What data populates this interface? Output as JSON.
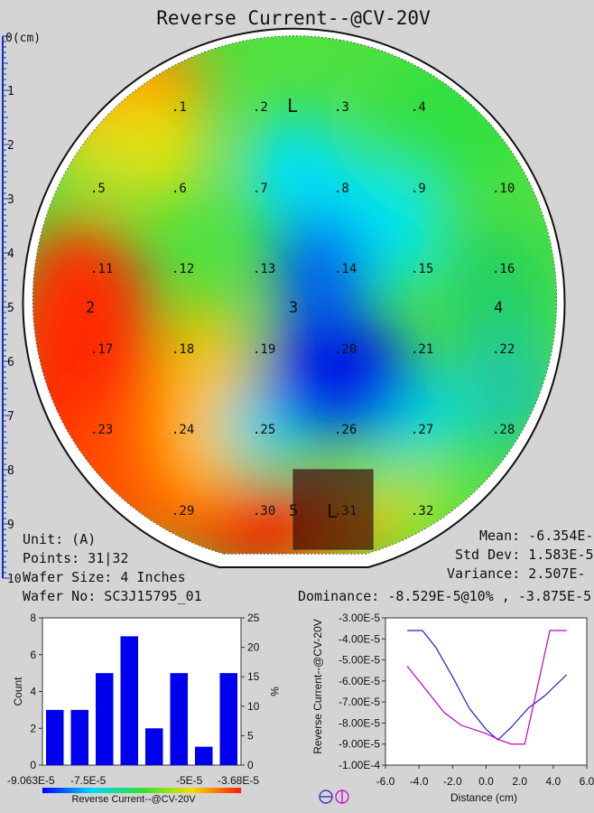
{
  "title": "Reverse Current--@CV-20V",
  "ruler": {
    "first_label": "0(cm)",
    "labels": [
      "1",
      "2",
      "3",
      "4",
      "5",
      "6",
      "7",
      "8",
      "9",
      "10"
    ]
  },
  "wafer": {
    "notch_label_top": "L",
    "notch_label_bottom": "L",
    "region_labels": [
      "2",
      "3",
      "4",
      "5"
    ],
    "site_labels": [
      ".1",
      ".2",
      ".3",
      ".4",
      ".5",
      ".6",
      ".7",
      ".8",
      ".9",
      ".10",
      ".11",
      ".12",
      ".13",
      ".14",
      ".15",
      ".16",
      ".17",
      ".18",
      ".19",
      ".20",
      ".21",
      ".22",
      ".23",
      ".24",
      ".25",
      ".26",
      ".27",
      ".28",
      ".29",
      ".30",
      ".31",
      ".32"
    ]
  },
  "info": {
    "unit": "Unit: (A)",
    "points": "Points: 31|32",
    "wafer_size": "Wafer Size: 4 Inches",
    "wafer_no": "Wafer No: SC3J15795_01"
  },
  "stats": {
    "mean": "Mean: -6.354E-",
    "std_dev": "Std Dev: 1.583E-5",
    "variance": "Variance: 2.507E-",
    "dominance": "Dominance: -8.529E-5@10% , -3.875E-5"
  },
  "colors": {
    "bar": "#0000ee",
    "line_blue": "#2020c0",
    "line_magenta": "#c000c0",
    "map_red": "#ff2a00",
    "map_blue": "#0018e6"
  },
  "chart_data": [
    {
      "type": "bar",
      "name": "histogram",
      "values": [
        3,
        3,
        5,
        7,
        2,
        5,
        1,
        5
      ],
      "ylabel": "Count",
      "ylim": [
        0,
        8
      ],
      "yticks": [
        "0",
        "2",
        "4",
        "6",
        "8"
      ],
      "y2label": "%",
      "y2lim": [
        0,
        25
      ],
      "y2ticks": [
        "0",
        "5",
        "10",
        "15",
        "20",
        "25"
      ],
      "xticks": [
        "-9.063E-5",
        "-7.5E-5",
        "-5E-5",
        "-3.68E-5"
      ],
      "colorbar_label": "Reverse Current--@CV-20V"
    },
    {
      "type": "line",
      "name": "profile",
      "xlabel": "Distance (cm)",
      "ylabel": "Reverse Current--@CV-20V",
      "xlim": [
        -6.0,
        6.0
      ],
      "ylim": [
        -0.0001,
        -3e-05
      ],
      "xticks": [
        "-6.0",
        "-4.0",
        "-2.0",
        "0.0",
        "2.0",
        "4.0",
        "6.0"
      ],
      "yticks": [
        "-3.00E-5",
        "-4.00E-5",
        "-5.00E-5",
        "-6.00E-5",
        "-7.00E-5",
        "-8.00E-5",
        "-9.00E-5",
        "-1.00E-4"
      ],
      "series": [
        {
          "x": [
            -4.7,
            -3.8,
            -3.0,
            -2.0,
            -1.0,
            0.0,
            0.7,
            1.5,
            2.5,
            3.5,
            4.8
          ],
          "values": [
            -3.6e-05,
            -3.6e-05,
            -4.4e-05,
            -5.8e-05,
            -7.3e-05,
            -8.3e-05,
            -8.8e-05,
            -8.2e-05,
            -7.3e-05,
            -6.7e-05,
            -5.7e-05
          ]
        },
        {
          "x": [
            -4.7,
            -3.5,
            -2.5,
            -1.5,
            0.0,
            0.8,
            1.5,
            2.3,
            3.0,
            3.8,
            4.8
          ],
          "values": [
            -5.3e-05,
            -6.5e-05,
            -7.5e-05,
            -8.1e-05,
            -8.5e-05,
            -8.8e-05,
            -9e-05,
            -9e-05,
            -6.5e-05,
            -3.6e-05,
            -3.6e-05
          ]
        }
      ]
    }
  ]
}
